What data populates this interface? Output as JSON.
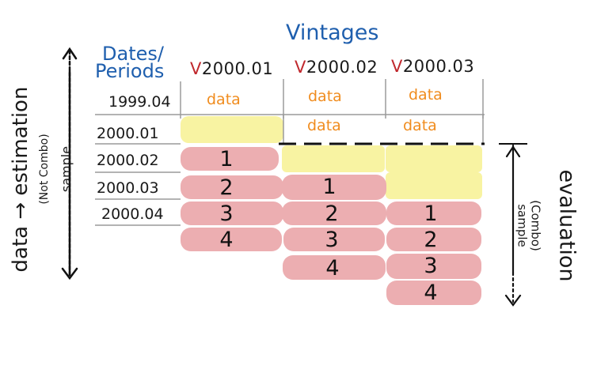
{
  "title": "Vintages",
  "dates_header": [
    "Dates/",
    "Periods"
  ],
  "vintages": [
    {
      "prefix": "V",
      "label": "2000.01"
    },
    {
      "prefix": "V",
      "label": "2000.02"
    },
    {
      "prefix": "V",
      "label": "2000.03"
    }
  ],
  "periods": [
    "1999.04",
    "2000.01",
    "2000.02",
    "2000.03",
    "2000.04"
  ],
  "data_label": "data",
  "forecast_steps": [
    "1",
    "2",
    "3",
    "4"
  ],
  "left_axis": {
    "main": "data → estimation",
    "sub1": "(Not Combo)",
    "sub2": "sample"
  },
  "right_axis": {
    "main": "evaluation",
    "sub1": "(Combo)",
    "sub2": "sample"
  },
  "colors": {
    "title": "#1f5fae",
    "vintage_prefix": "#c0282d",
    "data_text": "#f08c1e",
    "forecast_fill": "#ecaeb1",
    "data_fill": "#f8f3a2",
    "grid": "#9a9a9a"
  }
}
